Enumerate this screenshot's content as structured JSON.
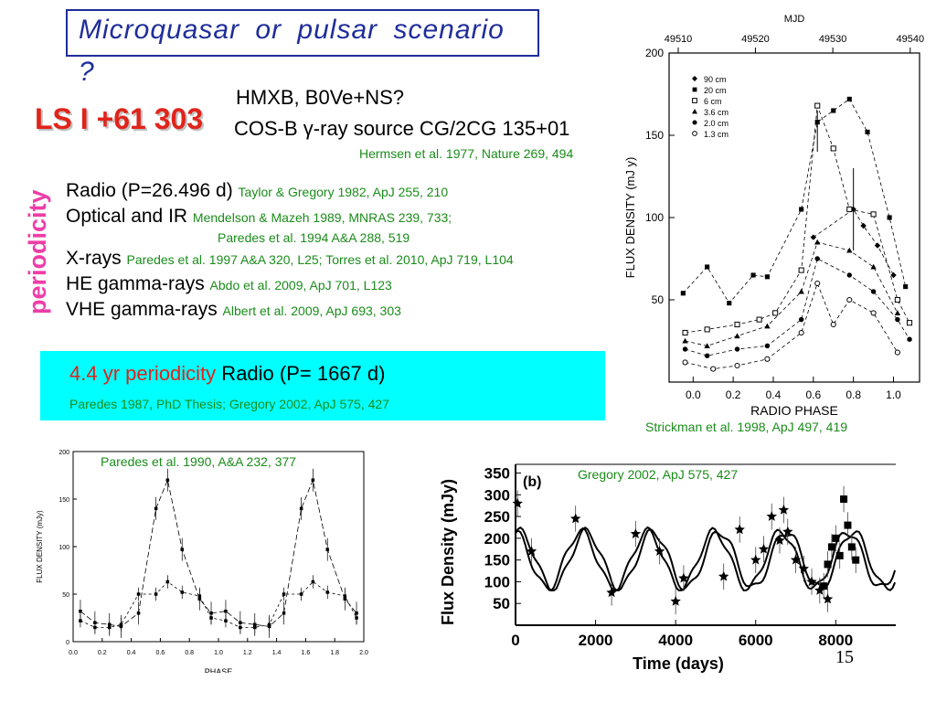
{
  "slide": {
    "title": "Microquasar  or  pulsar  scenario",
    "title_q": "?",
    "source_name": "LS I +61 303",
    "line_a": "HMXB, B0Ve+NS?",
    "line_b": "COS-B γ-ray source CG/2CG 135+01",
    "line_c": "Hermsen et al. 1977, Nature 269, 494",
    "periodicity_label": "periodicity",
    "page_number": "15"
  },
  "periodicity_list": [
    {
      "band": "Radio  (P=26.496 d) ",
      "ref": "Taylor & Gregory 1982, ApJ 255, 210"
    },
    {
      "band": "Optical and IR ",
      "ref": "Mendelson & Mazeh 1989, MNRAS 239, 733;"
    },
    {
      "band": "",
      "ref": "Paredes et al. 1994 A&A 288, 519"
    },
    {
      "band": "X-rays  ",
      "ref": "Paredes et al. 1997 A&A 320, L25; Torres et al. 2010, ApJ 719, L104"
    },
    {
      "band": "HE gamma-rays ",
      "ref": "Abdo et al. 2009, ApJ  701, L123"
    },
    {
      "band": "VHE gamma-rays  ",
      "ref": "Albert et al. 2009, ApJ 693, 303"
    }
  ],
  "long_period": {
    "red_text": "4.4 yr periodicity",
    "text": " Radio  (P= 1667 d)",
    "ref": "Paredes 1987, PhD Thesis; Gregory 2002, ApJ 575, 427"
  },
  "captions": {
    "strickman": "Strickman et al. 1998, ApJ 497, 419",
    "paredes": "Paredes et al. 1990, A&A 232, 377",
    "gregory": "Gregory 2002, ApJ 575, 427"
  },
  "colors": {
    "title": "#1f2d9a",
    "accent_red": "#e0241b",
    "ref_green": "#1a8c1a",
    "box_cyan": "#00ffff",
    "periodicity_pink": "#ee3ea8"
  },
  "chart_data": [
    {
      "type": "line",
      "title": "",
      "xlabel": "RADIO PHASE",
      "ylabel": "FLUX DENSITY (mJ y)",
      "x2label": "MJD",
      "x2ticks": [
        "49510",
        "49520",
        "49530",
        "49540"
      ],
      "xticks": [
        "0.0",
        "0.2",
        "0.4",
        "0.6",
        "0.8",
        "1.0"
      ],
      "yticks": [
        "50",
        "100",
        "150",
        "200"
      ],
      "xlim": [
        -0.12,
        1.13
      ],
      "ylim": [
        0,
        200
      ],
      "legend": [
        "90 cm",
        "20 cm",
        "6 cm",
        "3.6 cm",
        "2.0 cm",
        "1.3 cm"
      ],
      "series": [
        {
          "name": "90 cm",
          "x": [
            0.6,
            0.8,
            0.85,
            0.92,
            1.0
          ],
          "y": [
            88,
            105,
            95,
            83,
            65
          ]
        },
        {
          "name": "20 cm",
          "x": [
            -0.05,
            0.07,
            0.18,
            0.3,
            0.37,
            0.54,
            0.62,
            0.7,
            0.78,
            0.87,
            0.98,
            1.06
          ],
          "y": [
            54,
            70,
            48,
            65,
            64,
            105,
            158,
            165,
            172,
            152,
            100,
            58
          ]
        },
        {
          "name": "6 cm",
          "x": [
            -0.04,
            0.07,
            0.22,
            0.33,
            0.41,
            0.54,
            0.62,
            0.7,
            0.78,
            0.9,
            1.02,
            1.08
          ],
          "y": [
            30,
            32,
            35,
            38,
            42,
            68,
            168,
            142,
            105,
            102,
            50,
            36
          ]
        },
        {
          "name": "3.6 cm",
          "x": [
            -0.04,
            0.07,
            0.22,
            0.37,
            0.54,
            0.62,
            0.78,
            0.9,
            1.02
          ],
          "y": [
            25,
            22,
            28,
            34,
            55,
            85,
            80,
            70,
            42
          ]
        },
        {
          "name": "2.0 cm",
          "x": [
            -0.04,
            0.07,
            0.22,
            0.37,
            0.54,
            0.62,
            0.78,
            0.9,
            1.02,
            1.08
          ],
          "y": [
            20,
            16,
            20,
            22,
            38,
            75,
            65,
            55,
            38,
            26
          ]
        },
        {
          "name": "1.3 cm",
          "x": [
            -0.04,
            0.1,
            0.22,
            0.37,
            0.54,
            0.62,
            0.7,
            0.78,
            0.9,
            1.02
          ],
          "y": [
            12,
            8,
            10,
            14,
            30,
            60,
            35,
            50,
            42,
            18
          ]
        }
      ]
    },
    {
      "type": "line",
      "title": "",
      "xlabel": "PHASE",
      "ylabel": "FLUX DENSITY  (mJy)",
      "xticks": [
        "0.0",
        "0.2",
        "0.4",
        "0.6",
        "0.8",
        "1.0",
        "1.2",
        "1.4",
        "1.6",
        "1.8",
        "2.0"
      ],
      "yticks": [
        "0",
        "50",
        "100",
        "150",
        "200"
      ],
      "xlim": [
        0,
        2.0
      ],
      "ylim": [
        0,
        200
      ],
      "series": [
        {
          "name": "",
          "x": [
            0.05,
            0.15,
            0.25,
            0.33,
            0.45,
            0.57,
            0.65,
            0.75,
            0.87,
            0.95,
            1.05,
            1.15,
            1.25,
            1.35,
            1.45,
            1.57,
            1.65,
            1.75,
            1.87,
            1.95
          ],
          "y": [
            32,
            20,
            18,
            16,
            30,
            140,
            170,
            97,
            45,
            30,
            32,
            20,
            18,
            16,
            30,
            140,
            170,
            97,
            45,
            30
          ]
        },
        {
          "name": "",
          "x": [
            0.05,
            0.15,
            0.25,
            0.33,
            0.45,
            0.57,
            0.65,
            0.75,
            0.87,
            0.95,
            1.05,
            1.15,
            1.25,
            1.35,
            1.45,
            1.57,
            1.65,
            1.75,
            1.87,
            1.95
          ],
          "y": [
            22,
            15,
            15,
            18,
            50,
            50,
            63,
            52,
            48,
            25,
            22,
            15,
            15,
            18,
            50,
            50,
            63,
            52,
            48,
            25
          ]
        }
      ]
    },
    {
      "type": "scatter",
      "title": "",
      "panel_label": "(b)",
      "xlabel": "Time (days)",
      "ylabel": "Flux Density (mJy)",
      "xticks": [
        "0",
        "2000",
        "4000",
        "6000",
        "8000"
      ],
      "yticks": [
        "50",
        "100",
        "150",
        "200",
        "250",
        "300",
        "350"
      ],
      "xlim": [
        0,
        9500
      ],
      "ylim": [
        0,
        370
      ],
      "series": [
        {
          "name": "",
          "marker": "star",
          "x": [
            50,
            400,
            1500,
            2400,
            3000,
            3600,
            4000,
            4200,
            5200,
            5600,
            6000,
            6200,
            6400,
            6600,
            6700,
            6800,
            7000,
            7200,
            7400,
            7600,
            7800
          ],
          "y": [
            280,
            170,
            245,
            75,
            210,
            170,
            55,
            108,
            112,
            220,
            150,
            175,
            250,
            195,
            265,
            215,
            150,
            130,
            100,
            80,
            60
          ]
        },
        {
          "name": "",
          "marker": "square",
          "x": [
            7700,
            7800,
            7900,
            8000,
            8100,
            8200,
            8300,
            8400,
            8500
          ],
          "y": [
            90,
            140,
            180,
            200,
            160,
            290,
            230,
            180,
            150
          ]
        }
      ]
    }
  ]
}
